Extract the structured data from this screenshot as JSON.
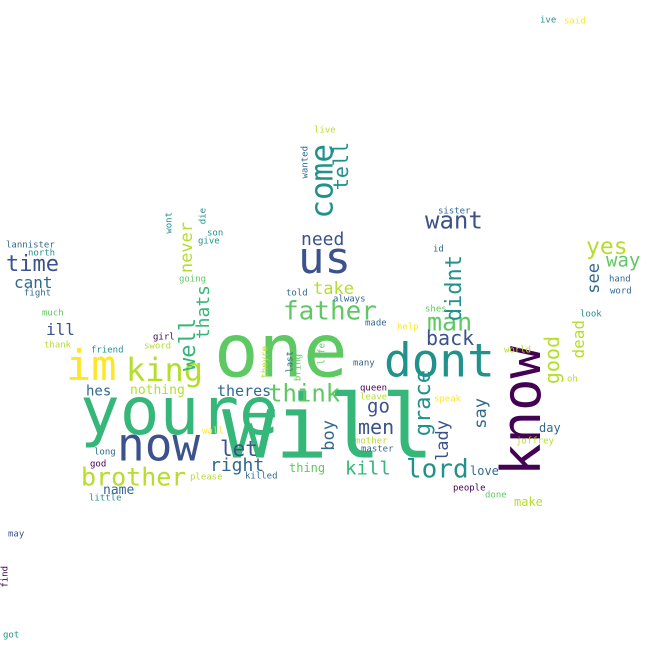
{
  "background": "#ffffff",
  "palette": {
    "purple": "#440154",
    "indigo": "#3b528b",
    "slate": "#31688e",
    "teal": "#21918c",
    "green": "#35b779",
    "mint": "#5ec962",
    "yellowgreen": "#b5de2b",
    "yellow": "#fde725"
  },
  "words": [
    {
      "text": "will",
      "color": "#35b779"
    },
    {
      "text": "one",
      "color": "#5ec962"
    },
    {
      "text": "youre",
      "color": "#35b779"
    },
    {
      "text": "know",
      "color": "#440154"
    },
    {
      "text": "dont",
      "color": "#21918c"
    },
    {
      "text": "now",
      "color": "#3b528b"
    },
    {
      "text": "us",
      "color": "#3b528b"
    },
    {
      "text": "im",
      "color": "#fde725"
    },
    {
      "text": "king",
      "color": "#b5de2b"
    },
    {
      "text": "come",
      "color": "#21918c"
    },
    {
      "text": "lord",
      "color": "#21918c"
    },
    {
      "text": "brother",
      "color": "#b5de2b"
    },
    {
      "text": "father",
      "color": "#5ec962"
    },
    {
      "text": "man",
      "color": "#5ec962"
    },
    {
      "text": "want",
      "color": "#3b528b"
    },
    {
      "text": "think",
      "color": "#5ec962"
    },
    {
      "text": "time",
      "color": "#3b528b"
    },
    {
      "text": "yes",
      "color": "#b5de2b"
    },
    {
      "text": "grace",
      "color": "#21918c"
    },
    {
      "text": "well",
      "color": "#35b779"
    },
    {
      "text": "good",
      "color": "#b5de2b"
    },
    {
      "text": "tell",
      "color": "#21918c"
    },
    {
      "text": "men",
      "color": "#3b528b"
    },
    {
      "text": "didnt",
      "color": "#21918c"
    },
    {
      "text": "never",
      "color": "#b5de2b"
    },
    {
      "text": "back",
      "color": "#3b528b"
    },
    {
      "text": "go",
      "color": "#3b528b"
    },
    {
      "text": "let",
      "color": "#3b528b"
    },
    {
      "text": "right",
      "color": "#31688e"
    },
    {
      "text": "kill",
      "color": "#35b779"
    },
    {
      "text": "need",
      "color": "#3b528b"
    },
    {
      "text": "way",
      "color": "#5ec962"
    },
    {
      "text": "take",
      "color": "#b5de2b"
    },
    {
      "text": "thats",
      "color": "#35b779"
    },
    {
      "text": "see",
      "color": "#31688e"
    },
    {
      "text": "lady",
      "color": "#3b528b"
    },
    {
      "text": "say",
      "color": "#31688e"
    },
    {
      "text": "boy",
      "color": "#31688e"
    },
    {
      "text": "dead",
      "color": "#b5de2b"
    },
    {
      "text": "ill",
      "color": "#3b528b"
    },
    {
      "text": "cant",
      "color": "#31688e"
    },
    {
      "text": "theres",
      "color": "#31688e"
    },
    {
      "text": "hes",
      "color": "#31688e"
    },
    {
      "text": "name",
      "color": "#31688e"
    },
    {
      "text": "nothing",
      "color": "#b5de2b"
    },
    {
      "text": "thing",
      "color": "#5ec962"
    },
    {
      "text": "love",
      "color": "#31688e"
    },
    {
      "text": "day",
      "color": "#31688e"
    },
    {
      "text": "make",
      "color": "#b5de2b"
    },
    {
      "text": "lannister",
      "color": "#31688e"
    },
    {
      "text": "north",
      "color": "#21918c"
    },
    {
      "text": "fight",
      "color": "#31688e"
    },
    {
      "text": "much",
      "color": "#5ec962"
    },
    {
      "text": "thank",
      "color": "#b5de2b"
    },
    {
      "text": "friend",
      "color": "#21918c"
    },
    {
      "text": "sword",
      "color": "#b5de2b"
    },
    {
      "text": "girl",
      "color": "#440154"
    },
    {
      "text": "going",
      "color": "#5ec962"
    },
    {
      "text": "give",
      "color": "#21918c"
    },
    {
      "text": "son",
      "color": "#21918c"
    },
    {
      "text": "wont",
      "color": "#21918c"
    },
    {
      "text": "die",
      "color": "#21918c"
    },
    {
      "text": "told",
      "color": "#31688e"
    },
    {
      "text": "always",
      "color": "#31688e"
    },
    {
      "text": "made",
      "color": "#31688e"
    },
    {
      "text": "help",
      "color": "#fde725"
    },
    {
      "text": "last",
      "color": "#31688e"
    },
    {
      "text": "bring",
      "color": "#5ec962"
    },
    {
      "text": "life",
      "color": "#5ec962"
    },
    {
      "text": "theyre",
      "color": "#b5de2b"
    },
    {
      "text": "many",
      "color": "#31688e"
    },
    {
      "text": "queen",
      "color": "#440154"
    },
    {
      "text": "leave",
      "color": "#b5de2b"
    },
    {
      "text": "speak",
      "color": "#fde725"
    },
    {
      "text": "mother",
      "color": "#b5de2b"
    },
    {
      "text": "master",
      "color": "#31688e"
    },
    {
      "text": "killed",
      "color": "#31688e"
    },
    {
      "text": "please",
      "color": "#b5de2b"
    },
    {
      "text": "wall",
      "color": "#fde725"
    },
    {
      "text": "long",
      "color": "#31688e"
    },
    {
      "text": "god",
      "color": "#440154"
    },
    {
      "text": "little",
      "color": "#21918c"
    },
    {
      "text": "people",
      "color": "#440154"
    },
    {
      "text": "done",
      "color": "#5ec962"
    },
    {
      "text": "joffrey",
      "color": "#b5de2b"
    },
    {
      "text": "world",
      "color": "#b5de2b"
    },
    {
      "text": "oh",
      "color": "#b5de2b"
    },
    {
      "text": "shes",
      "color": "#5ec962"
    },
    {
      "text": "look",
      "color": "#21918c"
    },
    {
      "text": "hand",
      "color": "#31688e"
    },
    {
      "text": "word",
      "color": "#31688e"
    },
    {
      "text": "id",
      "color": "#31688e"
    },
    {
      "text": "sister",
      "color": "#31688e"
    },
    {
      "text": "live",
      "color": "#b5de2b"
    },
    {
      "text": "wanted",
      "color": "#31688e"
    },
    {
      "text": "ive",
      "color": "#21918c"
    },
    {
      "text": "said",
      "color": "#fde725"
    },
    {
      "text": "may",
      "color": "#3b528b"
    },
    {
      "text": "find",
      "color": "#440154"
    },
    {
      "text": "got",
      "color": "#21918c"
    }
  ]
}
